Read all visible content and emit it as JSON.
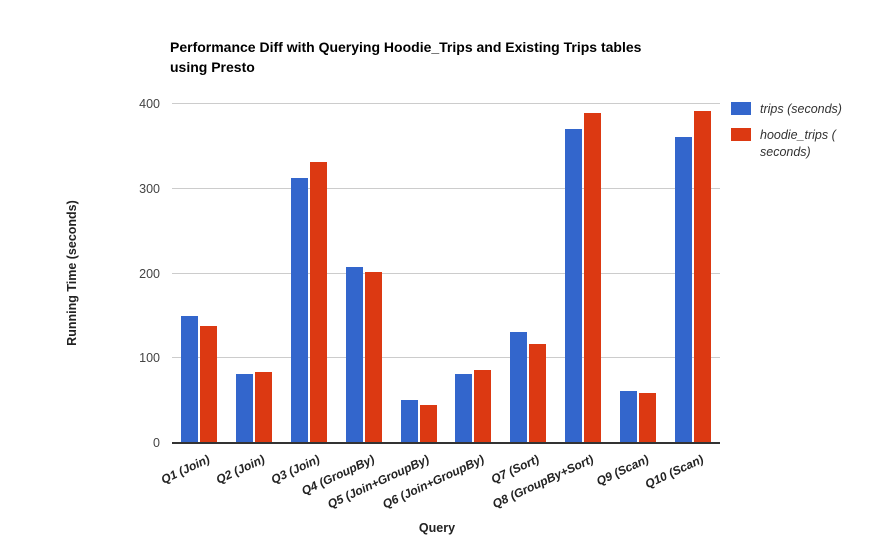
{
  "title_lines": [
    "Performance Diff with Querying Hoodie_Trips and Existing Trips tables",
    "using Presto"
  ],
  "colors": {
    "trips": "#3366CC",
    "hoodie_trips": "#DC3912",
    "gridline": "#CCCCCC",
    "axis_line": "#333333",
    "tick_text": "#444444"
  },
  "legend": {
    "items": [
      {
        "key": "trips",
        "color": "#3366CC",
        "lines": [
          "trips (seconds)"
        ]
      },
      {
        "key": "hoodie-trips",
        "color": "#DC3912",
        "lines": [
          "hoodie_trips (",
          "seconds)"
        ]
      }
    ]
  },
  "chart_data": {
    "type": "bar",
    "title": "Performance Diff with Querying Hoodie_Trips and Existing Trips tables using Presto",
    "xlabel": "Query",
    "ylabel": "Running Time (seconds)",
    "ylim": [
      0,
      400
    ],
    "yticks": [
      0,
      100,
      200,
      300,
      400
    ],
    "grid": true,
    "legend_position": "right",
    "categories": [
      "Q1 (Join)",
      "Q2 (Join)",
      "Q3 (Join)",
      "Q4 (GroupBy)",
      "Q5 (Join+GroupBy)",
      "Q6 (Join+GroupBy)",
      "Q7 (Sort)",
      "Q8 (GroupBy+Sort)",
      "Q9 (Scan)",
      "Q10 (Scan)"
    ],
    "series": [
      {
        "name": "trips (seconds)",
        "color": "#3366CC",
        "values": [
          150,
          81,
          313,
          208,
          51,
          81,
          131,
          371,
          61,
          361
        ]
      },
      {
        "name": "hoodie_trips (seconds)",
        "color": "#DC3912",
        "values": [
          138,
          84,
          332,
          202,
          45,
          86,
          117,
          389,
          59,
          392
        ]
      }
    ]
  }
}
